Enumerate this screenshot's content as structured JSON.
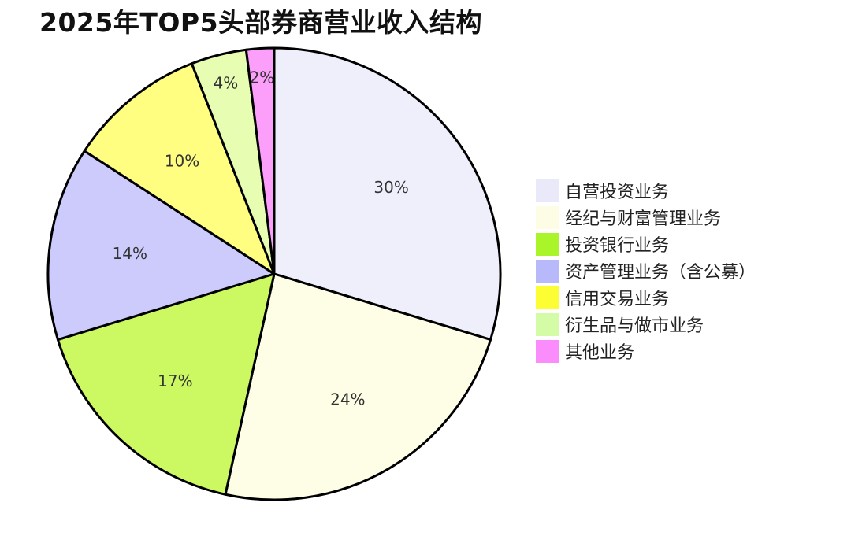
{
  "chart_data": {
    "type": "pie",
    "title": "2025年TOP5头部券商营业收入结构",
    "slices": [
      {
        "label": "自营投资业务",
        "value": 30,
        "display": "30%",
        "color": "#efeffb"
      },
      {
        "label": "经纪与财富管理业务",
        "value": 24,
        "display": "24%",
        "color": "#fefee6"
      },
      {
        "label": "投资银行业务",
        "value": 17,
        "display": "17%",
        "color": "#ccf862"
      },
      {
        "label": "资产管理业务（含公募）",
        "value": 14,
        "display": "14%",
        "color": "#cccbfc"
      },
      {
        "label": "信用交易业务",
        "value": 10,
        "display": "10%",
        "color": "#fffe81"
      },
      {
        "label": "衍生品与做市业务",
        "value": 4,
        "display": "4%",
        "color": "#e6fdb2"
      },
      {
        "label": "其他业务",
        "value": 2,
        "display": "2%",
        "color": "#fb9ffb"
      }
    ],
    "legend_entries": [
      {
        "label": "自营投资业务",
        "color": "#e9e9fa"
      },
      {
        "label": "经纪与财富管理业务",
        "color": "#fdfde6"
      },
      {
        "label": "投资银行业务",
        "color": "#aaf52a"
      },
      {
        "label": "资产管理业务（含公募）",
        "color": "#b7b9fb"
      },
      {
        "label": "信用交易业务",
        "color": "#fdfd34"
      },
      {
        "label": "衍生品与做市业务",
        "color": "#d4fca6"
      },
      {
        "label": "其他业务",
        "color": "#fb8cfb"
      }
    ],
    "start": "top (12 o'clock)",
    "direction": "clockwise",
    "legend_position": "right"
  }
}
